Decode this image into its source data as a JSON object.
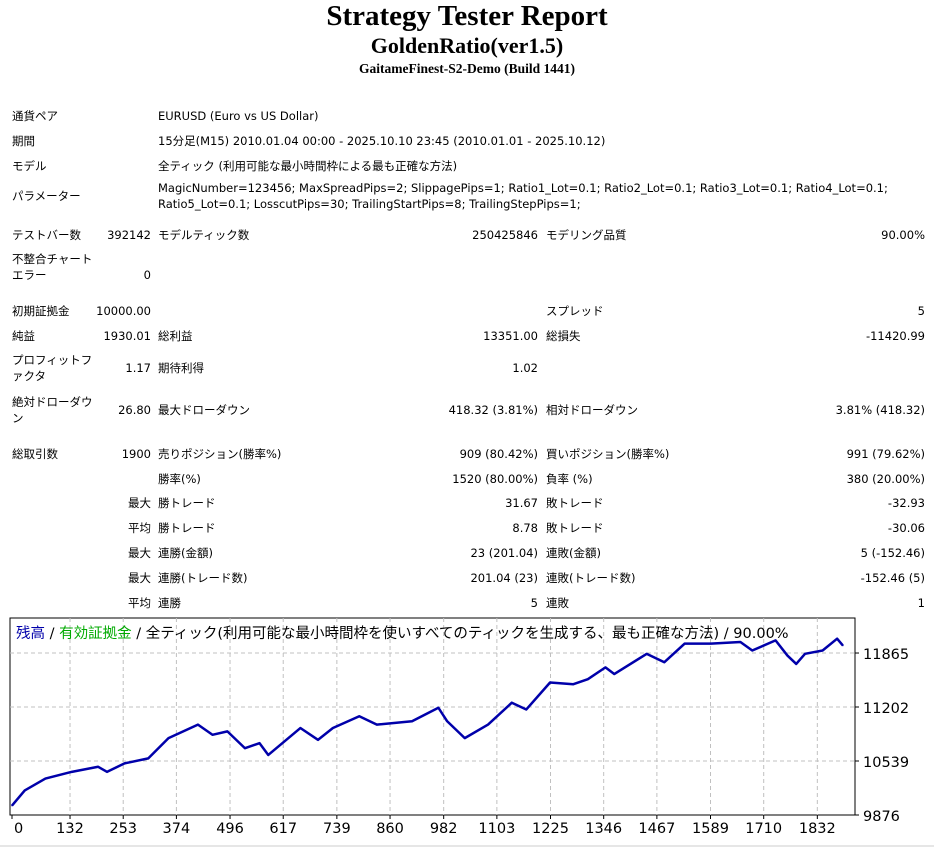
{
  "title": "Strategy Tester Report",
  "ea_name": "GoldenRatio(ver1.5)",
  "server": "GaitameFinest-S2-Demo (Build 1441)",
  "info": [
    {
      "label": "通貨ペア",
      "value": "EURUSD (Euro vs US Dollar)"
    },
    {
      "label": "期間",
      "value": "15分足(M15) 2010.01.04 00:00 - 2025.10.10 23:45 (2010.01.01 - 2025.10.12)"
    },
    {
      "label": "モデル",
      "value": "全ティック (利用可能な最小時間枠による最も正確な方法)"
    },
    {
      "label": "パラメーター",
      "value": "MagicNumber=123456; MaxSpreadPips=2; SlippagePips=1; Ratio1_Lot=0.1; Ratio2_Lot=0.1; Ratio3_Lot=0.1; Ratio4_Lot=0.1; Ratio5_Lot=0.1; LosscutPips=30; TrailingStartPips=8; TrailingStepPips=1;"
    }
  ],
  "stats": [
    [
      "テストバー数",
      "392142",
      "モデルティック数",
      "250425846",
      "モデリング品質",
      "90.00%"
    ],
    [
      "不整合チャートエラー",
      "0",
      "",
      "",
      "",
      ""
    ],
    [
      "初期証拠金",
      "10000.00",
      "",
      "",
      "スプレッド",
      "5"
    ],
    [
      "純益",
      "1930.01",
      "総利益",
      "13351.00",
      "総損失",
      "-11420.99"
    ],
    [
      "プロフィットファクタ",
      "1.17",
      "期待利得",
      "1.02",
      "",
      ""
    ],
    [
      "絶対ドローダウン",
      "26.80",
      "最大ドローダウン",
      "418.32 (3.81%)",
      "相対ドローダウン",
      "3.81% (418.32)"
    ],
    [
      "総取引数",
      "1900",
      "売りポジション(勝率%)",
      "909 (80.42%)",
      "買いポジション(勝率%)",
      "991 (79.62%)"
    ],
    [
      "",
      "",
      "勝率(%)",
      "1520 (80.00%)",
      "負率 (%)",
      "380 (20.00%)"
    ],
    [
      "",
      "最大",
      "勝トレード",
      "31.67",
      "敗トレード",
      "-32.93"
    ],
    [
      "",
      "平均",
      "勝トレード",
      "8.78",
      "敗トレード",
      "-30.06"
    ],
    [
      "",
      "最大",
      "連勝(金額)",
      "23 (201.04)",
      "連敗(金額)",
      "5 (-152.46)"
    ],
    [
      "",
      "最大",
      "連勝(トレード数)",
      "201.04 (23)",
      "連敗(トレード数)",
      "-152.46 (5)"
    ],
    [
      "",
      "平均",
      "連勝",
      "5",
      "連敗",
      "1"
    ]
  ],
  "chart_data": {
    "type": "line",
    "legend": {
      "balance": "残高",
      "sep1": " / ",
      "equity": "有効証拠金",
      "rest": " / 全ティック(利用可能な最小時間枠を使いすべてのティックを生成する、最も正確な方法) / 90.00%"
    },
    "colors": {
      "balance": "#0000aa",
      "equity": "#00aa00",
      "grid": "#c0c0c0"
    },
    "xlabel": "",
    "ylabel": "",
    "xticks": [
      0,
      132,
      253,
      374,
      496,
      617,
      739,
      860,
      982,
      1103,
      1225,
      1346,
      1467,
      1589,
      1710,
      1832
    ],
    "yticks": [
      9876,
      10539,
      11202,
      11865
    ],
    "xlim": [
      0,
      1945
    ],
    "ylim": [
      9876,
      12295
    ],
    "series": [
      {
        "name": "残高",
        "x": [
          0,
          29,
          76,
          136,
          196,
          216,
          256,
          310,
          356,
          423,
          456,
          490,
          530,
          563,
          583,
          656,
          696,
          730,
          790,
          830,
          910,
          970,
          990,
          1030,
          1083,
          1137,
          1170,
          1224,
          1277,
          1310,
          1350,
          1370,
          1444,
          1484,
          1530,
          1590,
          1657,
          1684,
          1737,
          1764,
          1784,
          1804,
          1844,
          1877,
          1890
        ],
        "y": [
          9992,
          10178,
          10323,
          10406,
          10468,
          10406,
          10510,
          10571,
          10820,
          10986,
          10861,
          10903,
          10696,
          10758,
          10613,
          10944,
          10799,
          10944,
          11089,
          10986,
          11027,
          11193,
          11027,
          10820,
          10986,
          11255,
          11172,
          11503,
          11482,
          11544,
          11689,
          11607,
          11855,
          11752,
          11980,
          11980,
          12000,
          11896,
          12020,
          11834,
          11731,
          11855,
          11896,
          12041,
          11958
        ]
      }
    ]
  }
}
